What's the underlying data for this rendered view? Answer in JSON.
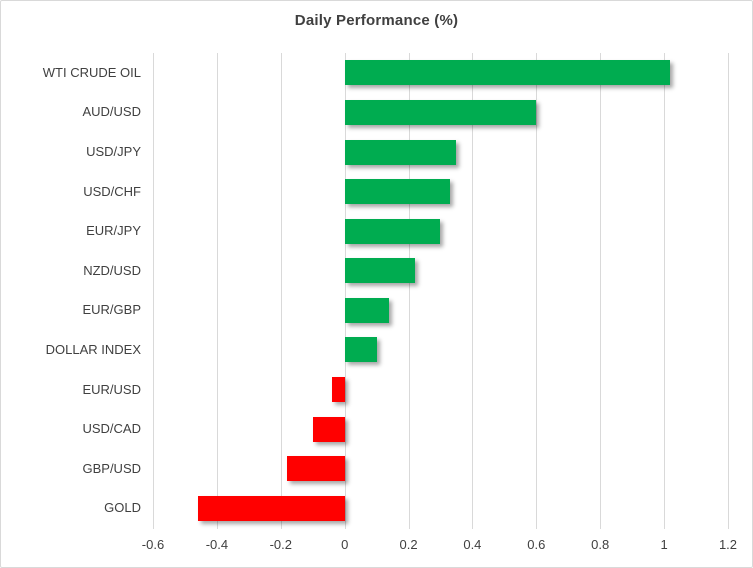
{
  "chart_data": {
    "type": "bar",
    "orientation": "horizontal",
    "title": "Daily Performance (%)",
    "categories": [
      "WTI CRUDE OIL",
      "AUD/USD",
      "USD/JPY",
      "USD/CHF",
      "EUR/JPY",
      "NZD/USD",
      "EUR/GBP",
      "DOLLAR INDEX",
      "EUR/USD",
      "USD/CAD",
      "GBP/USD",
      "GOLD"
    ],
    "values": [
      1.02,
      0.6,
      0.35,
      0.33,
      0.3,
      0.22,
      0.14,
      0.1,
      -0.04,
      -0.1,
      -0.18,
      -0.46
    ],
    "xlabel": "",
    "ylabel": "",
    "xlim": [
      -0.6,
      1.2
    ],
    "xticks": [
      -0.6,
      -0.4,
      -0.2,
      0,
      0.2,
      0.4,
      0.6,
      0.8,
      1,
      1.2
    ],
    "xtick_labels": [
      "-0.6",
      "-0.4",
      "-0.2",
      "0",
      "0.2",
      "0.4",
      "0.6",
      "0.8",
      "1",
      "1.2"
    ],
    "grid": "vertical",
    "legend": false,
    "colors": {
      "positive_bar": "#00AC50",
      "negative_bar": "#FF0000",
      "gridline": "#D9D9D9",
      "text": "#404040",
      "frame_border": "#D9D9D9",
      "background": "#FFFFFF"
    }
  }
}
